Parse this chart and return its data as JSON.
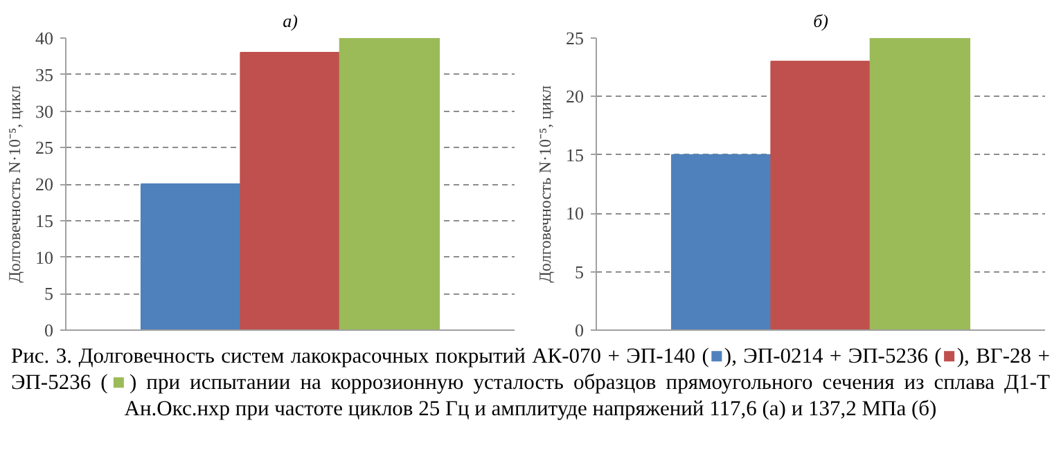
{
  "chart_data": [
    {
      "type": "bar",
      "title": "а)",
      "ylabel": "Долговечность N·10⁻⁵, цикл",
      "categories": [
        null,
        null,
        null
      ],
      "values": [
        20,
        38,
        40
      ],
      "colors": [
        "#4f81bd",
        "#c0504d",
        "#9bbb59"
      ],
      "ylim": [
        0,
        40
      ],
      "yticks": [
        0,
        5,
        10,
        15,
        20,
        25,
        30,
        35,
        40
      ],
      "grid": "y",
      "annotations": [
        "Рис. 3. Долговечность систем лакокрасочных покрытий АК-070 + ЭП-140 (■), ЭП-0214 + ЭП-5236 (■), ВГ-28 + ЭП-5236 (■) при испытании на коррозионную усталость образцов прямоугольного сечения из сплава Д1-Т Ан.Окс.нхр при частоте циклов 25 Гц и амплитуде напряжений 117,6 (а) и 137,2 МПа (б)"
      ]
    },
    {
      "type": "bar",
      "title": "б)",
      "ylabel": "Долговечность N·10⁻⁵, цикл",
      "categories": [
        null,
        null,
        null
      ],
      "values": [
        15,
        23,
        25
      ],
      "colors": [
        "#4f81bd",
        "#c0504d",
        "#9bbb59"
      ],
      "ylim": [
        0,
        25
      ],
      "yticks": [
        0,
        5,
        10,
        15,
        20,
        25
      ],
      "grid": "y"
    }
  ]
}
